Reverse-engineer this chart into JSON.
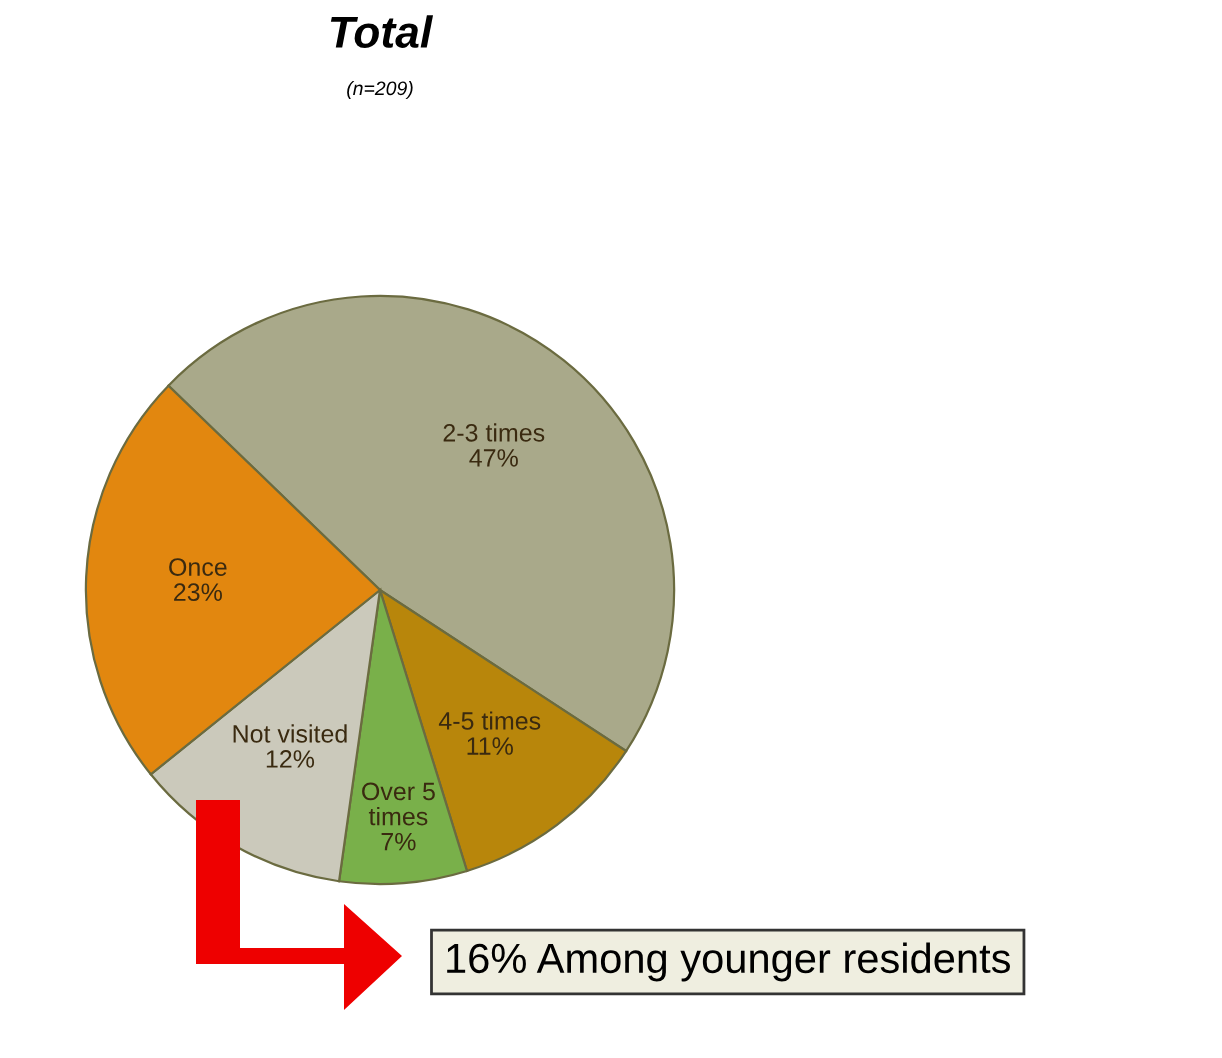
{
  "chart_data": {
    "type": "pie",
    "title": "Total",
    "subtitle": "(n=209)",
    "categories": [
      "2-3 times",
      "4-5 times",
      "Over 5 times",
      "Not visited",
      "Once"
    ],
    "values": [
      47,
      11,
      7,
      12,
      23
    ],
    "value_labels": [
      "47%",
      "11%",
      "7%",
      "12%",
      "23%"
    ],
    "colors": [
      "#a9a98a",
      "#b8860b",
      "#79b04a",
      "#cbc9bb",
      "#e2870f"
    ],
    "annotations": [
      "16% Among younger residents"
    ]
  }
}
